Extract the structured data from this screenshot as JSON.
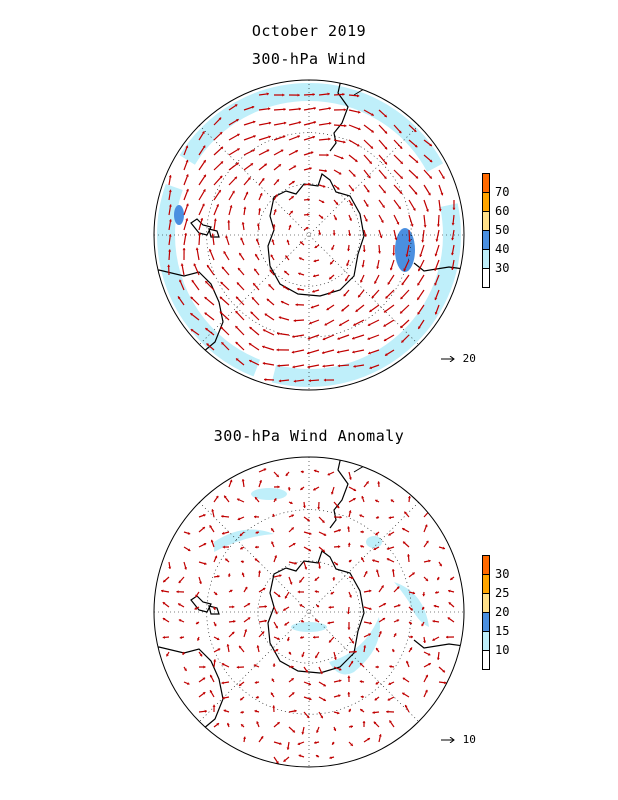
{
  "title_line1": "October 2019",
  "panels": [
    {
      "title": "300-hPa Wind",
      "colorbar": {
        "labels": [
          "70",
          "60",
          "50",
          "40",
          "30"
        ],
        "colors": [
          "#ff6a00",
          "#ffa500",
          "#ffe08a",
          "#4a8fe0",
          "#bfeffa",
          "#ffffff"
        ]
      },
      "reference_vector": "20"
    },
    {
      "title": "300-hPa Wind Anomaly",
      "colorbar": {
        "labels": [
          "30",
          "25",
          "20",
          "15",
          "10"
        ],
        "colors": [
          "#ff6a00",
          "#ffa500",
          "#ffe08a",
          "#4a8fe0",
          "#bfeffa",
          "#ffffff"
        ]
      },
      "reference_vector": "10"
    }
  ],
  "colors": {
    "arrow": "#c00000",
    "shade_light": "#bfeffa",
    "shade_dark": "#4a8fe0",
    "coast": "#000000"
  }
}
